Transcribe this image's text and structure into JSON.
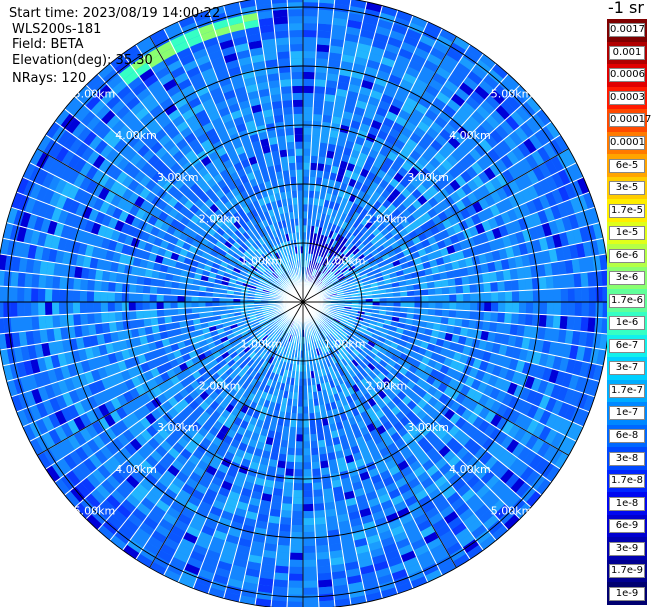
{
  "header": {
    "start_time": "Start time: 2023/08/19 14:00:22",
    "instrument": "WLS200s-181",
    "field": "Field: BETA",
    "elevation": "Elevation(deg): 35.30",
    "nrays": "NRays: 120"
  },
  "colorbar": {
    "title": "-1 sr",
    "labels": [
      "0.0017",
      "0.001",
      "0.0006",
      "0.0003",
      "0.00017",
      "0.0001",
      "6e-5",
      "3e-5",
      "1.7e-5",
      "1e-5",
      "6e-6",
      "3e-6",
      "1.7e-6",
      "1e-6",
      "6e-7",
      "3e-7",
      "1.7e-7",
      "1e-7",
      "6e-8",
      "3e-8",
      "1.7e-8",
      "1e-8",
      "6e-9",
      "3e-9",
      "1.7e-9",
      "1e-9"
    ],
    "colors": [
      "#7f0000",
      "#b00000",
      "#e00000",
      "#ff1a00",
      "#ff4a00",
      "#ff7a00",
      "#ffa400",
      "#ffcc00",
      "#ffee00",
      "#e0ff1a",
      "#b4ff46",
      "#8aff70",
      "#60ff9a",
      "#36ffc4",
      "#12f0ec",
      "#00d0ff",
      "#00acff",
      "#0088ff",
      "#0068ff",
      "#0048ff",
      "#0026ff",
      "#0008f0",
      "#0000d0",
      "#0000b0",
      "#000090",
      "#000070"
    ]
  },
  "chart_data": {
    "type": "heatmap",
    "projection": "polar PPI scan",
    "field": "BETA",
    "units": "-1 sr",
    "elevation_deg": 35.3,
    "n_rays": 120,
    "range_ring_labels": [
      "1.00km",
      "2.00km",
      "3.00km",
      "4.00km",
      "5.00km"
    ],
    "max_range_km": 5.2,
    "grid": true,
    "dominant_level": "1e-7 to 6e-8",
    "features": [
      {
        "name": "low backscatter cluster",
        "azimuth_deg": 25,
        "range_km": [
          0.3,
          1.3
        ],
        "level": "3e-9"
      },
      {
        "name": "high backscatter arc",
        "azimuth_deg": [
          -40,
          -10
        ],
        "range_km": [
          4.7,
          5.0
        ],
        "level": "6e-6"
      }
    ]
  }
}
